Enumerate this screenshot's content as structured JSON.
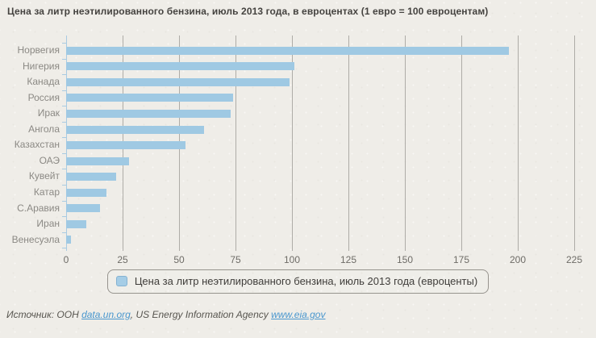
{
  "title": "Цена за литр неэтилированного бензина, июль 2013 года, в евроцентах (1 евро = 100 евроцентам)",
  "chart_data": {
    "type": "bar",
    "orientation": "horizontal",
    "title": "Цена за литр неэтилированного бензина, июль 2013 года, в евроцентах (1 евро = 100 евроцентам)",
    "categories": [
      "Норвегия",
      "Нигерия",
      "Канада",
      "Россия",
      "Ирак",
      "Ангола",
      "Казахстан",
      "ОАЭ",
      "Кувейт",
      "Катар",
      "С.Аравия",
      "Иран",
      "Венесуэла"
    ],
    "values": [
      196,
      101,
      99,
      74,
      73,
      61,
      53,
      28,
      22,
      18,
      15,
      9,
      2
    ],
    "series_name": "Цена за литр неэтилированного бензина, июль 2013 года (евроценты)",
    "xlabel": "",
    "ylabel": "",
    "xlim": [
      0,
      225
    ],
    "x_ticks": [
      0,
      25,
      50,
      75,
      100,
      125,
      150,
      175,
      200,
      225
    ],
    "grid": true,
    "legend_position": "bottom",
    "bar_color": "#9fc9e3"
  },
  "legend": {
    "label": "Цена за литр неэтилированного бензина, июль 2013 года (евроценты)",
    "swatch_color": "#a5cde6"
  },
  "source": {
    "prefix": "Источник: ООН ",
    "un_link": "data.un.org",
    "middle": ", US Energy Information Agency ",
    "eia_link": "www.eia.gov"
  },
  "colors": {
    "background": "#efede8",
    "bar": "#9fc9e3",
    "gridline": "#aeaca7",
    "axis": "#a9cbe2",
    "title_text": "#454340",
    "category_text": "#8b8984",
    "tick_text": "#6e6c67",
    "link": "#4a97ce"
  }
}
